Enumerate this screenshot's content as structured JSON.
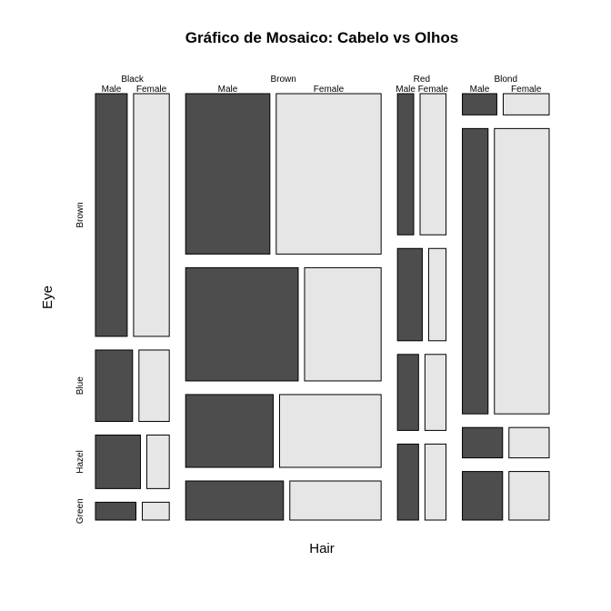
{
  "chart_data": {
    "type": "mosaic",
    "title": "Gráfico de Mosaico: Cabelo vs Olhos",
    "xlabel": "Hair",
    "ylabel": "Eye",
    "hair_levels": [
      "Black",
      "Brown",
      "Red",
      "Blond"
    ],
    "eye_levels": [
      "Brown",
      "Blue",
      "Hazel",
      "Green"
    ],
    "sex_levels": [
      "Male",
      "Female"
    ],
    "colors": {
      "Male": "#4d4d4d",
      "Female": "#e6e6e6"
    },
    "cells": [
      {
        "hair": "Black",
        "eye": "Brown",
        "Male": 32,
        "Female": 36
      },
      {
        "hair": "Black",
        "eye": "Blue",
        "Male": 11,
        "Female": 9
      },
      {
        "hair": "Black",
        "eye": "Hazel",
        "Male": 10,
        "Female": 5
      },
      {
        "hair": "Black",
        "eye": "Green",
        "Male": 3,
        "Female": 2
      },
      {
        "hair": "Brown",
        "eye": "Brown",
        "Male": 53,
        "Female": 66
      },
      {
        "hair": "Brown",
        "eye": "Blue",
        "Male": 50,
        "Female": 34
      },
      {
        "hair": "Brown",
        "eye": "Hazel",
        "Male": 25,
        "Female": 29
      },
      {
        "hair": "Brown",
        "eye": "Green",
        "Male": 15,
        "Female": 14
      },
      {
        "hair": "Red",
        "eye": "Brown",
        "Male": 10,
        "Female": 16
      },
      {
        "hair": "Red",
        "eye": "Blue",
        "Male": 10,
        "Female": 7
      },
      {
        "hair": "Red",
        "eye": "Hazel",
        "Male": 7,
        "Female": 7
      },
      {
        "hair": "Red",
        "eye": "Green",
        "Male": 7,
        "Female": 7
      },
      {
        "hair": "Blond",
        "eye": "Brown",
        "Male": 3,
        "Female": 4
      },
      {
        "hair": "Blond",
        "eye": "Blue",
        "Male": 30,
        "Female": 64
      },
      {
        "hair": "Blond",
        "eye": "Hazel",
        "Male": 5,
        "Female": 5
      },
      {
        "hair": "Blond",
        "eye": "Green",
        "Male": 8,
        "Female": 8
      }
    ]
  }
}
